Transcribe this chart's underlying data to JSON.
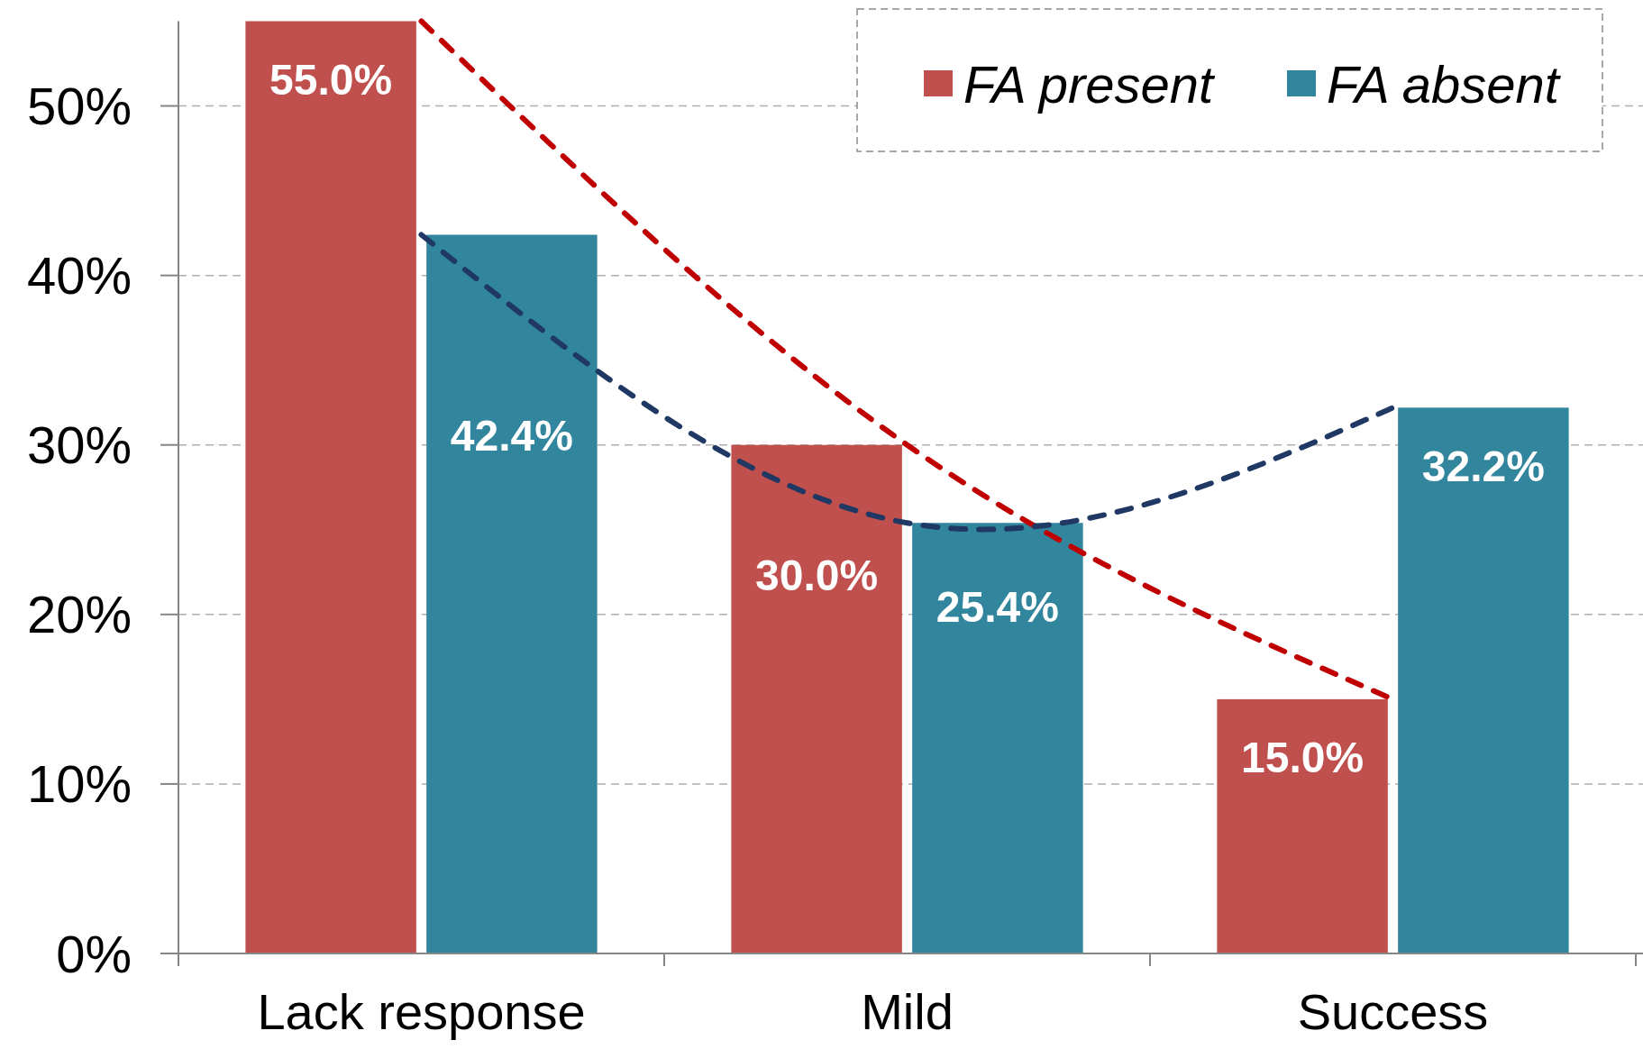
{
  "chart_data": {
    "type": "bar",
    "categories": [
      "Lack response",
      "Mild",
      "Success"
    ],
    "series": [
      {
        "name": "FA present",
        "color": "#c0504d",
        "values": [
          55.0,
          30.0,
          15.0
        ],
        "value_labels": [
          "55.0%",
          "30.0%",
          "15.0%"
        ]
      },
      {
        "name": "FA absent",
        "color": "#31859c",
        "values": [
          42.4,
          25.4,
          32.2
        ],
        "value_labels": [
          "42.4%",
          "25.4%",
          "32.2%"
        ]
      },
      {
        "type": "line",
        "color": "#c00000",
        "values": [
          55.0,
          30.0,
          15.0
        ],
        "line_style": "dashed"
      },
      {
        "type": "line",
        "color": "#1f3864",
        "values": [
          42.4,
          25.4,
          32.2
        ],
        "line_style": "dashed"
      }
    ],
    "ylim": [
      0,
      55
    ],
    "yticks": [
      {
        "value": 0,
        "label": "0%"
      },
      {
        "value": 10,
        "label": "10%"
      },
      {
        "value": 20,
        "label": "20%"
      },
      {
        "value": 30,
        "label": "30%"
      },
      {
        "value": 40,
        "label": "40%"
      },
      {
        "value": 50,
        "label": "50%"
      }
    ],
    "grid": "y",
    "legend": "top right"
  }
}
